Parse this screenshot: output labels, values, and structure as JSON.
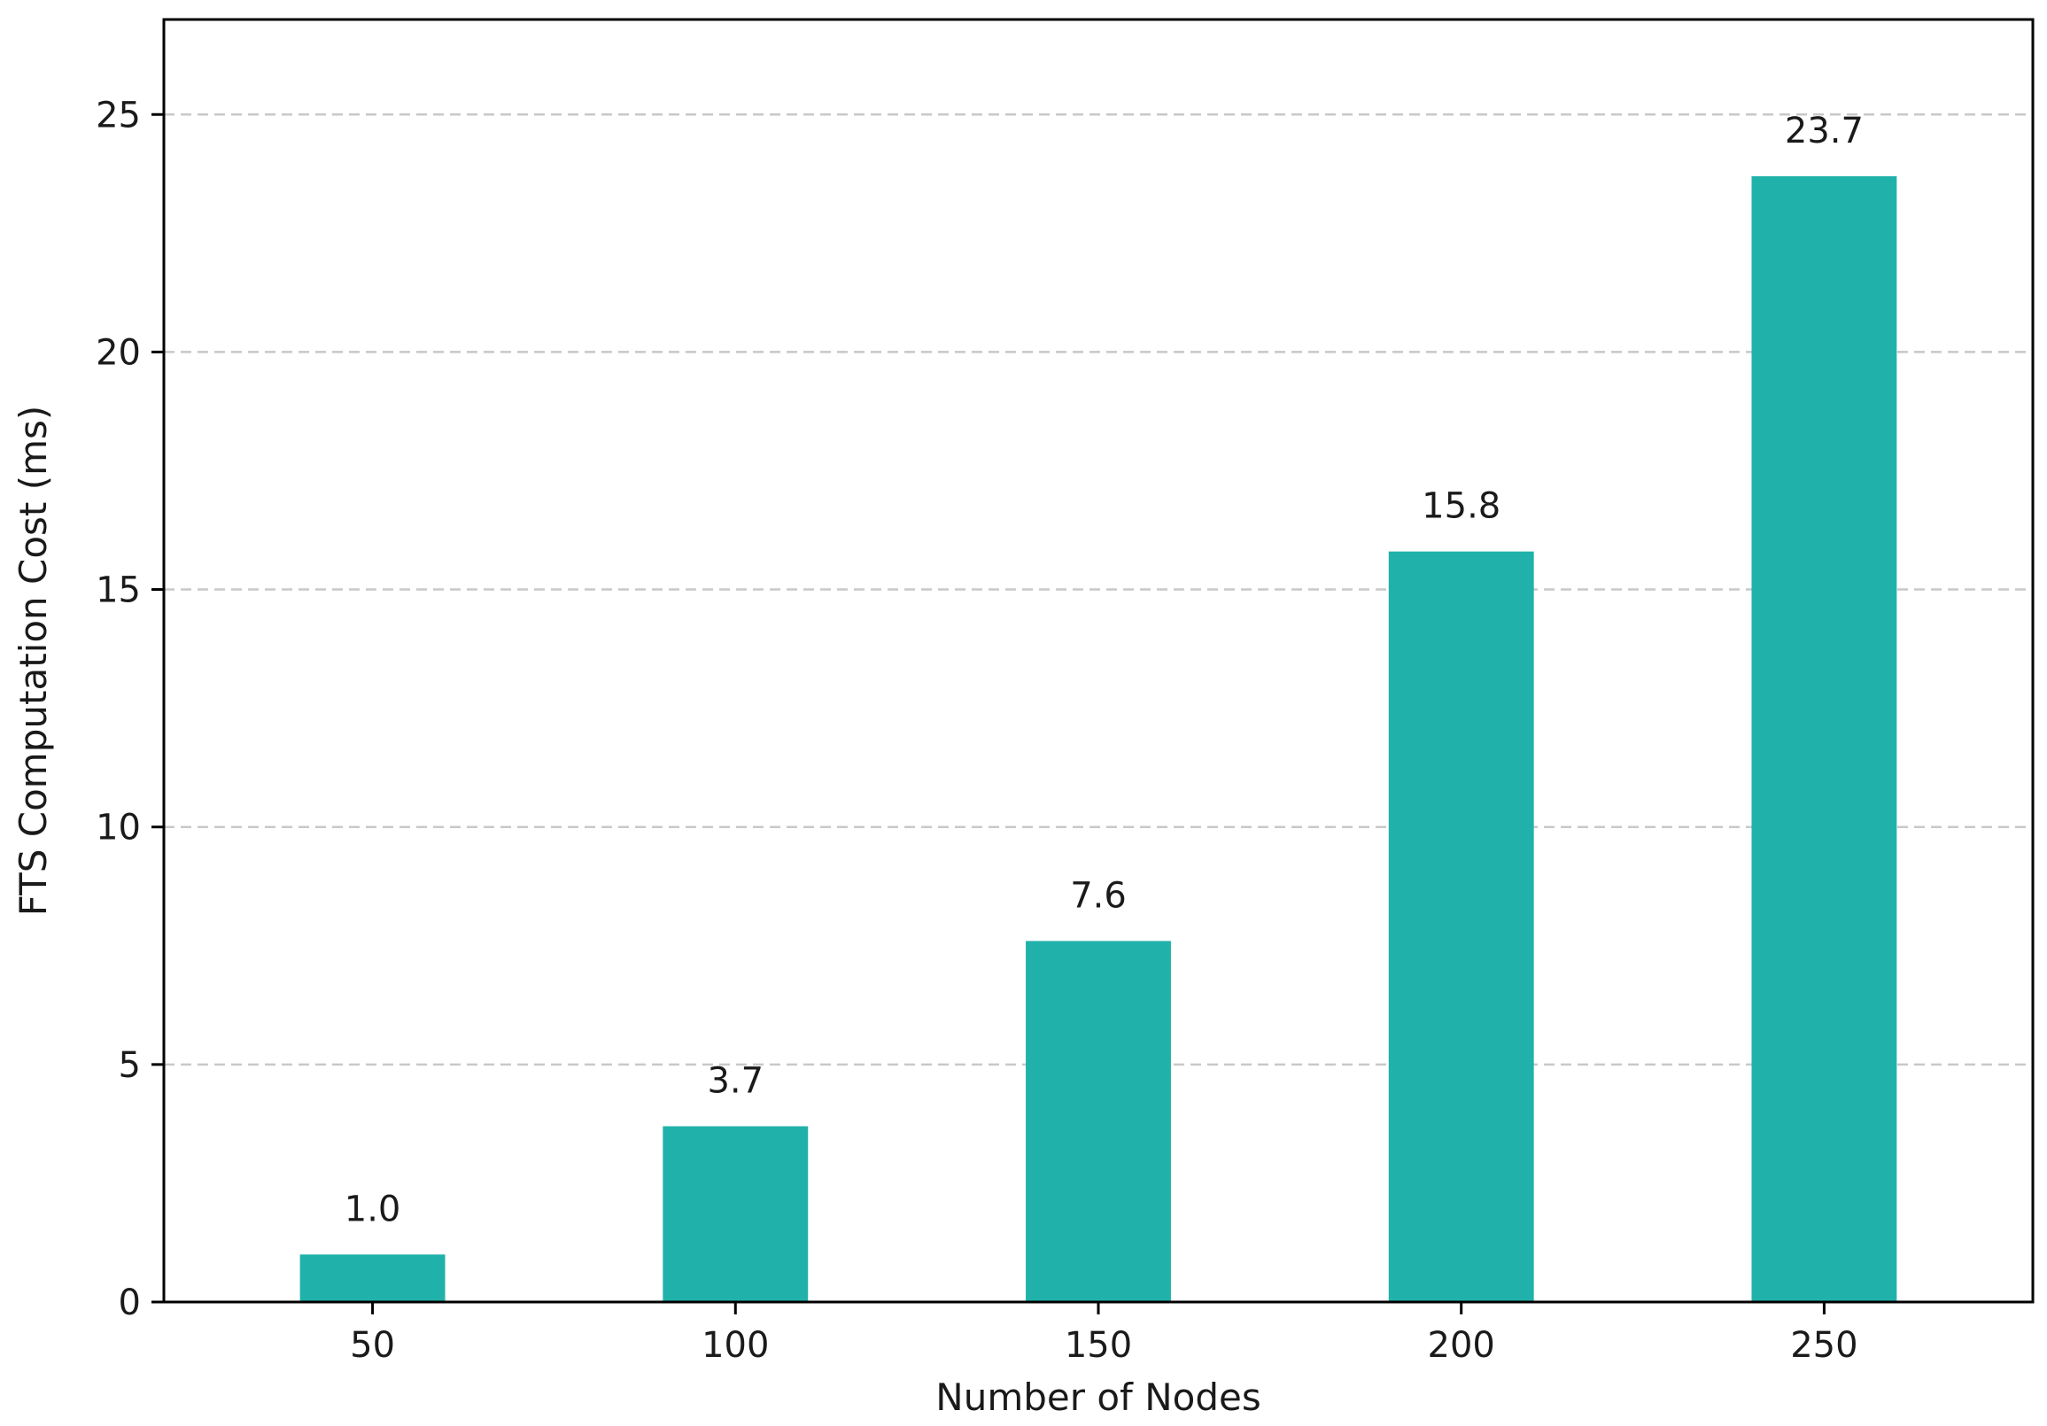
{
  "chart_data": {
    "type": "bar",
    "categories": [
      "50",
      "100",
      "150",
      "200",
      "250"
    ],
    "values": [
      1.0,
      3.7,
      7.6,
      15.8,
      23.7
    ],
    "value_labels": [
      "1.0",
      "3.7",
      "7.6",
      "15.8",
      "23.7"
    ],
    "title": "",
    "xlabel": "Number of Nodes",
    "ylabel": "FTS Computation Cost (ms)",
    "ylim": [
      0,
      27
    ],
    "yticks": [
      0,
      5,
      10,
      15,
      20,
      25
    ],
    "grid": "horizontal-dashed",
    "legend": "none",
    "bar_color": "#20b2aa",
    "grid_color": "#c8c8c8"
  }
}
